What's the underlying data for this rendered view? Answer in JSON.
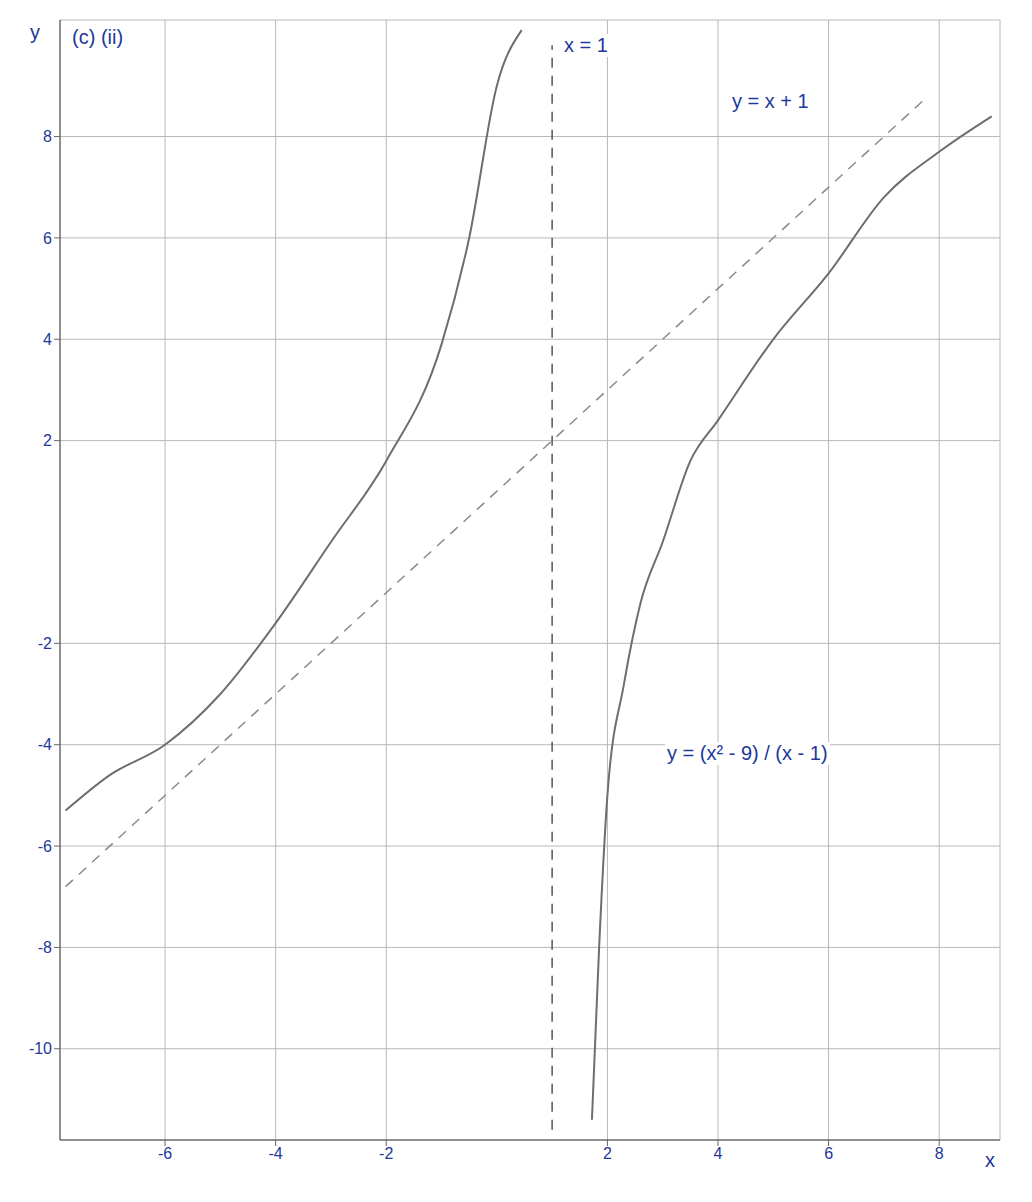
{
  "chart_data": {
    "type": "line",
    "annotations": [
      "(c) (ii)"
    ],
    "x_label": "x",
    "y_label": "y",
    "xlim": [
      -7.9,
      9.1
    ],
    "ylim": [
      -11.8,
      10.3
    ],
    "xticks": [
      -6,
      -4,
      -2,
      2,
      4,
      6,
      8
    ],
    "yticks": [
      -10,
      -8,
      -6,
      -4,
      -2,
      2,
      4,
      6,
      8
    ],
    "grid": true,
    "series": [
      {
        "name": "y = (x² - 9) / (x - 1)",
        "color": "#6e6e6e",
        "line_style": "solid",
        "x": [
          -7.8,
          -7,
          -6,
          -5,
          -4,
          -3,
          -2,
          -1,
          -0.5,
          0,
          0.45,
          1,
          1.72,
          1.85,
          2,
          2.3,
          2.6,
          3,
          3.5,
          4,
          5,
          6,
          7,
          8,
          8.95
        ],
        "values": [
          -5.3,
          -4.6,
          -4,
          -3,
          -1.6,
          0,
          1.6,
          3.9,
          6,
          9,
          10.1,
          null,
          -11.4,
          -8,
          -5,
          -2.8,
          -1.2,
          0,
          1.6,
          2.4,
          4,
          5.3,
          6.8,
          7.7,
          8.4
        ]
      },
      {
        "name": "x = 1",
        "color": "#555555",
        "line_style": "dashed",
        "x": [
          1,
          1
        ],
        "values": [
          -11.6,
          9.8
        ]
      },
      {
        "name": "y = x + 1",
        "color": "#8a8a8a",
        "line_style": "dashed",
        "x": [
          -7.8,
          7.8
        ],
        "values": [
          -6.8,
          8.8
        ]
      }
    ]
  }
}
